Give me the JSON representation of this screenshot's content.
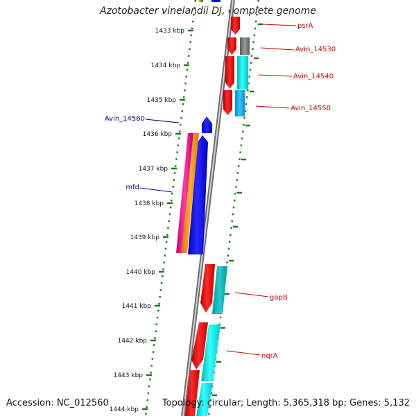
{
  "title": "Azotobacter vinelandii DJ, complete genome",
  "accession_label": "Accession: NC_012560",
  "summary_label": "Topology: circular; Length: 5,365,318 bp; Genes: 5,132",
  "ruler": {
    "unit": "kbp",
    "ticks": [
      "1433 kbp",
      "1434 kbp",
      "1435 kbp",
      "1436 kbp",
      "1437 kbp",
      "1438 kbp",
      "1439 kbp",
      "1440 kbp",
      "1441 kbp",
      "1442 kbp",
      "1443 kbp",
      "1444 kbp"
    ]
  },
  "gene_labels": [
    {
      "name": "psrA",
      "side": "right",
      "color": "#cc0000"
    },
    {
      "name": "Avin_14530",
      "side": "right",
      "color": "#cc0000"
    },
    {
      "name": "Avin_14540",
      "side": "right",
      "color": "#cc0000"
    },
    {
      "name": "Avin_14550",
      "side": "right",
      "color": "#cc0000"
    },
    {
      "name": "Avin_14560",
      "side": "left",
      "color": "#00008b"
    },
    {
      "name": "mfd",
      "side": "left",
      "color": "#00008b"
    },
    {
      "name": "gapB",
      "side": "right",
      "color": "#cc0000"
    },
    {
      "name": "nqrA",
      "side": "right",
      "color": "#cc0000"
    }
  ],
  "colors": {
    "backbone": "#8c8c8c",
    "ruler": "#1a7a1a",
    "forward_cds": "#ff0000",
    "reverse_cds": "#0000ff",
    "cyan": "#00e5e5",
    "gray": "#808080",
    "pink": "#ff1493",
    "orange": "#ff9900"
  }
}
